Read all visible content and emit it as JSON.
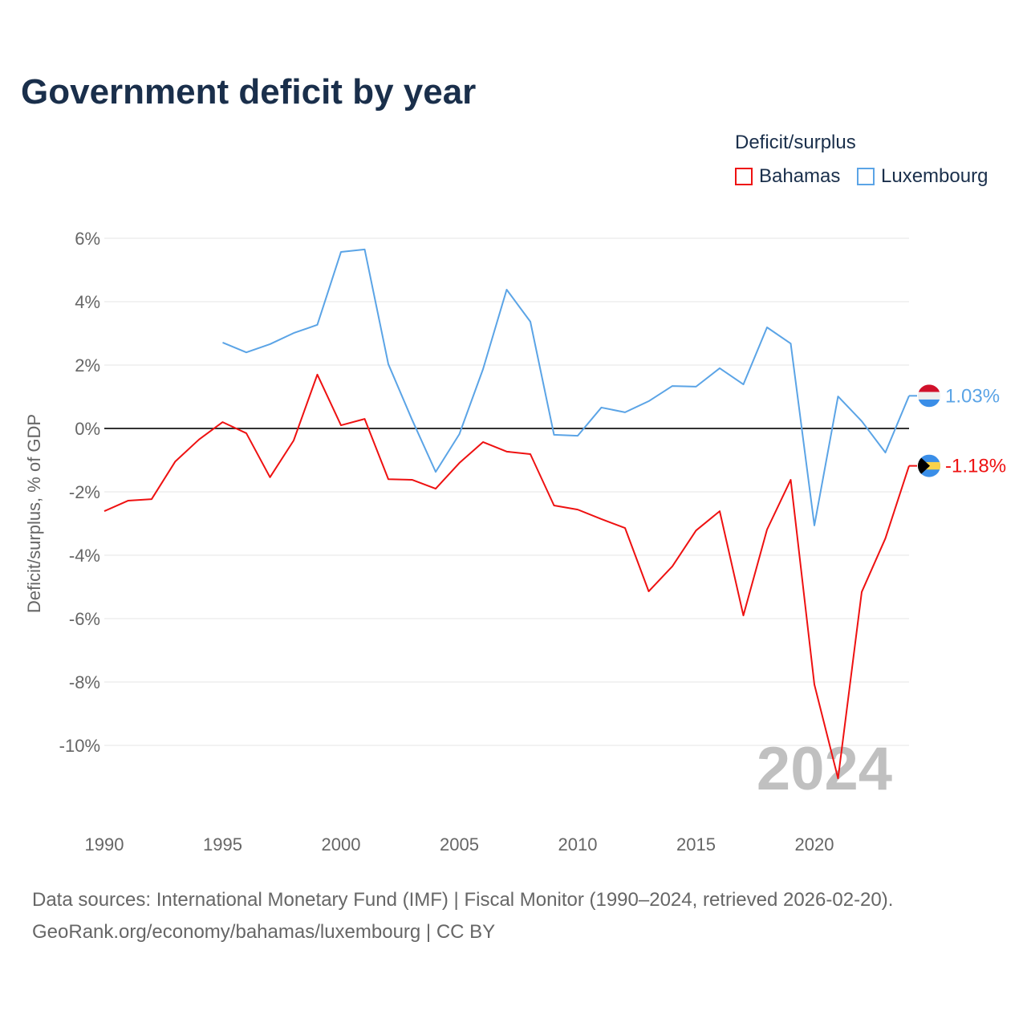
{
  "title": "Government deficit by year",
  "legend": {
    "title": "Deficit/surplus",
    "items": [
      {
        "label": "Bahamas",
        "color": "#ee1111"
      },
      {
        "label": "Luxembourg",
        "color": "#5ba4e6"
      }
    ]
  },
  "footer": {
    "line1": "Data sources: International Monetary Fund (IMF) | Fiscal Monitor (1990–2024, retrieved 2026-02-20).",
    "line2": "GeoRank.org/economy/bahamas/luxembourg | CC BY"
  },
  "year_watermark": "2024",
  "chart_data": {
    "type": "line",
    "title": "Government deficit by year",
    "xlabel": "",
    "ylabel": "Deficit/surplus, % of GDP",
    "xlim": [
      1990,
      2024
    ],
    "ylim": [
      -12,
      6
    ],
    "x_ticks": [
      1990,
      1995,
      2000,
      2005,
      2010,
      2015,
      2020
    ],
    "x_tick_labels": [
      "1990",
      "1995",
      "2000",
      "2005",
      "2010",
      "2015",
      "2020"
    ],
    "y_ticks": [
      6,
      4,
      2,
      0,
      -2,
      -4,
      -6,
      -8,
      -10
    ],
    "y_tick_labels": [
      "6%",
      "4%",
      "2%",
      "0%",
      "-2%",
      "-4%",
      "-6%",
      "-8%",
      "-10%"
    ],
    "grid": true,
    "legend_position": "top-right",
    "series": [
      {
        "name": "Bahamas",
        "color": "#ee1111",
        "end_label": "-1.18%",
        "x": [
          1990,
          1991,
          1992,
          1993,
          1994,
          1995,
          1996,
          1997,
          1998,
          1999,
          2000,
          2001,
          2002,
          2003,
          2004,
          2005,
          2006,
          2007,
          2008,
          2009,
          2010,
          2011,
          2012,
          2013,
          2014,
          2015,
          2016,
          2017,
          2018,
          2019,
          2020,
          2021,
          2022,
          2023,
          2024
        ],
        "values": [
          -2.61,
          -2.28,
          -2.23,
          -1.04,
          -0.35,
          0.2,
          -0.15,
          -1.54,
          -0.38,
          1.7,
          0.1,
          0.3,
          -1.6,
          -1.62,
          -1.9,
          -1.09,
          -0.43,
          -0.73,
          -0.81,
          -2.43,
          -2.56,
          -2.86,
          -3.14,
          -5.14,
          -4.35,
          -3.22,
          -2.61,
          -5.9,
          -3.19,
          -1.62,
          -8.08,
          -11.04,
          -5.16,
          -3.47,
          -1.18
        ]
      },
      {
        "name": "Luxembourg",
        "color": "#5ba4e6",
        "end_label": "1.03%",
        "x": [
          1995,
          1996,
          1997,
          1998,
          1999,
          2000,
          2001,
          2002,
          2003,
          2004,
          2005,
          2006,
          2007,
          2008,
          2009,
          2010,
          2011,
          2012,
          2013,
          2014,
          2015,
          2016,
          2017,
          2018,
          2019,
          2020,
          2021,
          2022,
          2023,
          2024
        ],
        "values": [
          2.71,
          2.4,
          2.66,
          3.01,
          3.27,
          5.57,
          5.65,
          2.03,
          0.28,
          -1.37,
          -0.18,
          1.87,
          4.38,
          3.37,
          -0.2,
          -0.23,
          0.66,
          0.51,
          0.86,
          1.34,
          1.32,
          1.9,
          1.39,
          3.19,
          2.68,
          -3.06,
          1.01,
          0.23,
          -0.76,
          1.03
        ]
      }
    ]
  }
}
